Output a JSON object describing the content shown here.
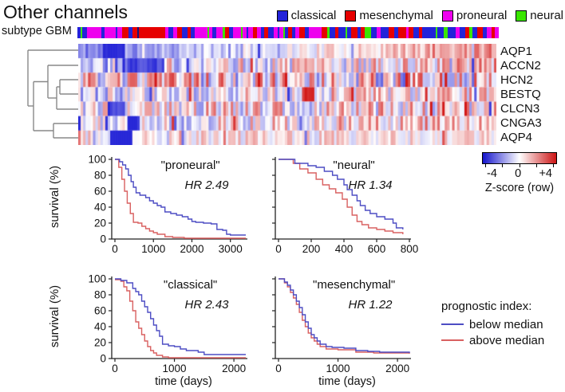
{
  "title": "Other channels",
  "subtype_legend": [
    {
      "label": "classical",
      "color": "#2323d9"
    },
    {
      "label": "mesenchymal",
      "color": "#e60000"
    },
    {
      "label": "proneural",
      "color": "#ee00ee"
    },
    {
      "label": "neural",
      "color": "#3ae600"
    }
  ],
  "subtype_bar": {
    "label": "subtype GBM",
    "colors": {
      "B": "#2323d9",
      "R": "#e60000",
      "M": "#ee00ee",
      "G": "#3ae600",
      "K": "#131380"
    },
    "segments": [
      [
        "B",
        3
      ],
      [
        "G",
        2
      ],
      [
        "B",
        5
      ],
      [
        "M",
        16
      ],
      [
        "B",
        3
      ],
      [
        "M",
        12
      ],
      [
        "B",
        2
      ],
      [
        "M",
        5
      ],
      [
        "R",
        7
      ],
      [
        "B",
        4
      ],
      [
        "R",
        5
      ],
      [
        "K",
        2
      ],
      [
        "R",
        28
      ],
      [
        "M",
        4
      ],
      [
        "B",
        5
      ],
      [
        "M",
        4
      ],
      [
        "R",
        5
      ],
      [
        "B",
        6
      ],
      [
        "R",
        4
      ],
      [
        "B",
        4
      ],
      [
        "M",
        14
      ],
      [
        "G",
        2
      ],
      [
        "M",
        3
      ],
      [
        "B",
        4
      ],
      [
        "M",
        7
      ],
      [
        "G",
        3
      ],
      [
        "R",
        4
      ],
      [
        "B",
        4
      ],
      [
        "M",
        9
      ],
      [
        "G",
        2
      ],
      [
        "M",
        4
      ],
      [
        "B",
        2
      ],
      [
        "M",
        5
      ],
      [
        "R",
        4
      ],
      [
        "M",
        4
      ],
      [
        "B",
        4
      ],
      [
        "R",
        4
      ],
      [
        "B",
        6
      ],
      [
        "M",
        4
      ],
      [
        "B",
        2
      ],
      [
        "M",
        4
      ],
      [
        "G",
        2
      ],
      [
        "B",
        4
      ],
      [
        "R",
        4
      ],
      [
        "B",
        3
      ],
      [
        "M",
        5
      ],
      [
        "R",
        6
      ],
      [
        "B",
        4
      ],
      [
        "M",
        14
      ],
      [
        "R",
        6
      ],
      [
        "G",
        2
      ],
      [
        "B",
        6
      ],
      [
        "R",
        4
      ],
      [
        "B",
        7
      ],
      [
        "G",
        2
      ],
      [
        "B",
        4
      ],
      [
        "R",
        7
      ],
      [
        "B",
        4
      ],
      [
        "R",
        4
      ],
      [
        "G",
        7
      ],
      [
        "B",
        6
      ],
      [
        "M",
        4
      ],
      [
        "B",
        9
      ],
      [
        "R",
        6
      ],
      [
        "B",
        4
      ],
      [
        "R",
        9
      ],
      [
        "M",
        2
      ],
      [
        "R",
        5
      ],
      [
        "B",
        6
      ],
      [
        "R",
        4
      ],
      [
        "B",
        14
      ],
      [
        "G",
        2
      ],
      [
        "B",
        7
      ],
      [
        "G",
        4
      ],
      [
        "B",
        9
      ],
      [
        "M",
        4
      ],
      [
        "B",
        6
      ],
      [
        "R",
        4
      ],
      [
        "G",
        4
      ],
      [
        "B",
        5
      ],
      [
        "R",
        6
      ],
      [
        "B",
        4
      ],
      [
        "M",
        5
      ],
      [
        "R",
        4
      ],
      [
        "M",
        4
      ]
    ]
  },
  "heatmap_rows": [
    "AQP1",
    "ACCN2",
    "HCN2",
    "BESTQ",
    "CLCN3",
    "CNGA3",
    "AQP4"
  ],
  "colorbar": {
    "tick_labels": [
      "-4",
      "0",
      "+4"
    ],
    "label": "Z-score (row)",
    "neg_color": "#1414cc",
    "pos_color": "#cc1414"
  },
  "km_legend": {
    "title": "prognostic index:",
    "below": {
      "label": "below median",
      "color": "#4d4dc4"
    },
    "above": {
      "label": "above median",
      "color": "#d96060"
    }
  },
  "chart_data": [
    {
      "type": "heatmap",
      "title": "Other channels",
      "zscale_label": "Z-score (row)",
      "zlim": [
        -4,
        4
      ],
      "colormap": "blue-white-red",
      "n_cols": 170,
      "rows": [
        {
          "label": "AQP1",
          "trend": [
            -1.7,
            1.5
          ],
          "noise": 0.8,
          "seed": 11,
          "spots": [
            {
              "p": 0.08,
              "w": 0.05,
              "z": -3.2
            }
          ]
        },
        {
          "label": "ACCN2",
          "trend": [
            -0.4,
            0.6
          ],
          "noise": 1.7,
          "seed": 22,
          "spots": [
            {
              "p": 0.16,
              "w": 0.09,
              "z": -2.6
            }
          ]
        },
        {
          "label": "HCN2",
          "trend": [
            0.1,
            0.2
          ],
          "noise": 2.4,
          "seed": 33,
          "spots": []
        },
        {
          "label": "BESTQ",
          "trend": [
            -0.6,
            0.5
          ],
          "noise": 1.5,
          "seed": 44,
          "spots": [
            {
              "p": 0.55,
              "w": 0.03,
              "z": 2.8
            }
          ]
        },
        {
          "label": "CLCN3",
          "trend": [
            0.1,
            0.35
          ],
          "noise": 1.8,
          "seed": 55,
          "spots": [
            {
              "p": 0.09,
              "w": 0.04,
              "z": -2.8
            }
          ]
        },
        {
          "label": "CNGA3",
          "trend": [
            -0.3,
            0.9
          ],
          "noise": 1.5,
          "seed": 66,
          "spots": [
            {
              "p": 0.13,
              "w": 0.035,
              "z": -3.0
            }
          ]
        },
        {
          "label": "AQP4",
          "trend": [
            0.35,
            0.15
          ],
          "noise": 1.0,
          "seed": 77,
          "spots": [
            {
              "p": 0.1,
              "w": 0.05,
              "z": -3.6
            }
          ]
        }
      ]
    },
    {
      "type": "line",
      "kind": "kaplan-meier",
      "key": "proneural",
      "title": "\"proneural\"",
      "hr": "HR 2.49",
      "ylabel": "survival (%)",
      "yticks": [
        0,
        20,
        40,
        60,
        80,
        100
      ],
      "xticks": [
        0,
        1000,
        2000,
        3000
      ],
      "xmax": 3400,
      "series": [
        {
          "name": "below median",
          "color": "#4d4dc4",
          "x": [
            0,
            120,
            200,
            280,
            350,
            420,
            480,
            550,
            650,
            800,
            900,
            1000,
            1100,
            1200,
            1300,
            1450,
            1600,
            1750,
            1900,
            2000,
            2100,
            2300,
            2500,
            2650,
            2800,
            2900,
            3000,
            3400
          ],
          "y": [
            100,
            97,
            93,
            88,
            80,
            72,
            65,
            58,
            55,
            52,
            48,
            45,
            42,
            40,
            34,
            32,
            30,
            28,
            25,
            22,
            21,
            20,
            19,
            12,
            11,
            6,
            5,
            5
          ]
        },
        {
          "name": "above median",
          "color": "#d96060",
          "x": [
            0,
            100,
            180,
            250,
            320,
            400,
            480,
            600,
            700,
            800,
            900,
            1000,
            1100,
            1300,
            1500,
            1800,
            3400
          ],
          "y": [
            100,
            90,
            75,
            60,
            45,
            32,
            21,
            20,
            16,
            13,
            10,
            8,
            6,
            3,
            2,
            1,
            1
          ]
        }
      ]
    },
    {
      "type": "line",
      "kind": "kaplan-meier",
      "key": "neural",
      "title": "\"neural\"",
      "hr": "HR 1.34",
      "yticks": [
        0,
        20,
        40,
        60,
        80,
        100
      ],
      "xticks": [
        0,
        200,
        400,
        600,
        800
      ],
      "xmax": 800,
      "series": [
        {
          "name": "below median",
          "color": "#4d4dc4",
          "x": [
            0,
            80,
            100,
            160,
            180,
            230,
            280,
            330,
            360,
            400,
            420,
            450,
            480,
            500,
            530,
            560,
            600,
            650,
            700,
            720,
            760
          ],
          "y": [
            100,
            100,
            95,
            95,
            92,
            90,
            85,
            80,
            75,
            68,
            62,
            55,
            48,
            42,
            36,
            32,
            28,
            25,
            20,
            14,
            12
          ]
        },
        {
          "name": "above median",
          "color": "#d96060",
          "x": [
            0,
            90,
            130,
            180,
            230,
            270,
            310,
            350,
            390,
            420,
            450,
            480,
            510,
            550,
            600,
            650,
            700,
            760
          ],
          "y": [
            100,
            95,
            88,
            83,
            75,
            68,
            63,
            58,
            50,
            40,
            30,
            22,
            18,
            14,
            12,
            10,
            8,
            6
          ]
        }
      ]
    },
    {
      "type": "line",
      "kind": "kaplan-meier",
      "key": "classical",
      "title": "\"classical\"",
      "hr": "HR 2.43",
      "ylabel": "survival (%)",
      "yticks": [
        0,
        20,
        40,
        60,
        80,
        100
      ],
      "xlabel": "time (days)",
      "xticks": [
        0,
        1000,
        2000
      ],
      "xmax": 2200,
      "series": [
        {
          "name": "below median",
          "color": "#4d4dc4",
          "x": [
            0,
            100,
            200,
            300,
            350,
            400,
            450,
            500,
            550,
            600,
            650,
            700,
            750,
            800,
            900,
            1000,
            1100,
            1200,
            1400,
            1500,
            2200
          ],
          "y": [
            100,
            98,
            95,
            88,
            84,
            80,
            72,
            65,
            58,
            50,
            42,
            35,
            28,
            18,
            16,
            15,
            12,
            10,
            8,
            5,
            5
          ]
        },
        {
          "name": "above median",
          "color": "#d96060",
          "x": [
            0,
            100,
            150,
            200,
            250,
            300,
            350,
            400,
            450,
            500,
            550,
            600,
            650,
            700,
            800,
            900,
            2200
          ],
          "y": [
            99,
            97,
            90,
            85,
            72,
            60,
            46,
            38,
            30,
            22,
            15,
            10,
            7,
            4,
            2,
            1,
            1
          ]
        }
      ]
    },
    {
      "type": "line",
      "kind": "kaplan-meier",
      "key": "mesenchymal",
      "title": "\"mesenchymal\"",
      "hr": "HR 1.22",
      "yticks": [
        0,
        20,
        40,
        60,
        80,
        100
      ],
      "xlabel": "time (days)",
      "xticks": [
        0,
        1000,
        2000
      ],
      "xmax": 2200,
      "series": [
        {
          "name": "below median",
          "color": "#4d4dc4",
          "x": [
            0,
            100,
            150,
            200,
            250,
            300,
            350,
            400,
            450,
            500,
            550,
            600,
            650,
            700,
            800,
            900,
            1100,
            1300,
            1500,
            1700,
            2200
          ],
          "y": [
            100,
            96,
            92,
            86,
            80,
            72,
            64,
            55,
            46,
            38,
            30,
            26,
            22,
            18,
            15,
            14,
            13,
            10,
            9,
            8,
            7
          ]
        },
        {
          "name": "above median",
          "color": "#d96060",
          "x": [
            0,
            100,
            150,
            200,
            250,
            300,
            350,
            400,
            450,
            500,
            550,
            600,
            650,
            700,
            800,
            1000,
            1300,
            1600,
            2200
          ],
          "y": [
            100,
            95,
            90,
            83,
            76,
            68,
            58,
            48,
            40,
            32,
            26,
            22,
            18,
            15,
            12,
            11,
            8,
            7,
            6
          ]
        }
      ]
    }
  ]
}
